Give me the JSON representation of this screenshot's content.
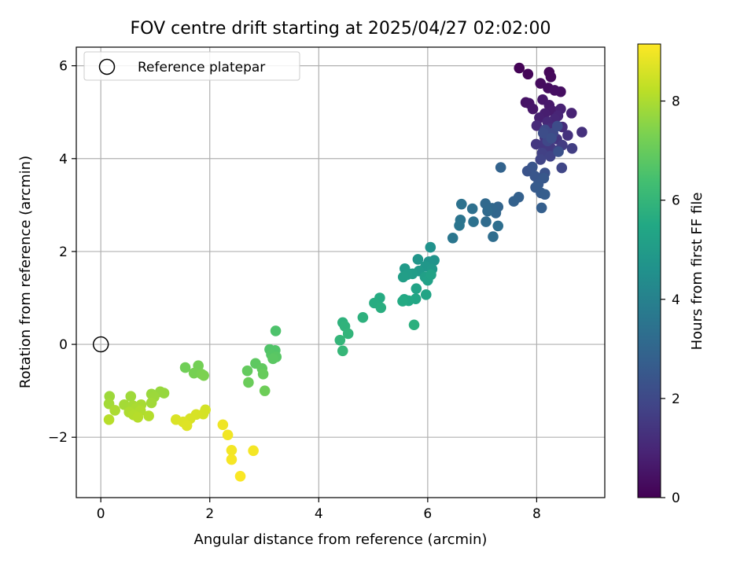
{
  "chart_data": {
    "type": "scatter",
    "title": "FOV centre drift starting at 2025/04/27 02:02:00",
    "xlabel": "Angular distance from reference (arcmin)",
    "ylabel": "Rotation from reference (arcmin)",
    "xlim": [
      -0.45,
      9.25
    ],
    "ylim": [
      -3.3,
      6.4
    ],
    "xticks": [
      0,
      2,
      4,
      6,
      8
    ],
    "xtick_labels": [
      "0",
      "2",
      "4",
      "6",
      "8"
    ],
    "yticks": [
      -2,
      0,
      2,
      4,
      6
    ],
    "ytick_labels": [
      "−2",
      "0",
      "2",
      "4",
      "6"
    ],
    "grid": true,
    "legend": {
      "placement": "top-left",
      "entries": [
        {
          "label": "Reference platepar",
          "marker": "open-circle"
        }
      ]
    },
    "reference_point": {
      "x": 0,
      "y": 0
    },
    "colorbar": {
      "label": "Hours from first FF file",
      "colormap": "viridis",
      "range": [
        0,
        9.15
      ],
      "ticks": [
        0,
        2,
        4,
        6,
        8
      ],
      "tick_labels": [
        "0",
        "2",
        "4",
        "6",
        "8"
      ]
    },
    "series": [
      {
        "points": [
          {
            "x": 7.68,
            "y": 5.95,
            "c": 0.05
          },
          {
            "x": 7.84,
            "y": 5.82,
            "c": 0.1
          },
          {
            "x": 8.23,
            "y": 5.86,
            "c": 0.15
          },
          {
            "x": 8.26,
            "y": 5.76,
            "c": 0.2
          },
          {
            "x": 8.07,
            "y": 5.62,
            "c": 0.25
          },
          {
            "x": 8.21,
            "y": 5.52,
            "c": 0.3
          },
          {
            "x": 8.44,
            "y": 5.44,
            "c": 0.35
          },
          {
            "x": 8.33,
            "y": 5.47,
            "c": 0.4
          },
          {
            "x": 7.8,
            "y": 5.21,
            "c": 0.45
          },
          {
            "x": 7.86,
            "y": 5.19,
            "c": 0.5
          },
          {
            "x": 7.93,
            "y": 5.07,
            "c": 0.55
          },
          {
            "x": 8.11,
            "y": 5.27,
            "c": 0.6
          },
          {
            "x": 8.23,
            "y": 5.15,
            "c": 0.65
          },
          {
            "x": 8.3,
            "y": 5.02,
            "c": 0.7
          },
          {
            "x": 8.15,
            "y": 4.97,
            "c": 0.75
          },
          {
            "x": 8.05,
            "y": 4.88,
            "c": 0.8
          },
          {
            "x": 8.44,
            "y": 5.07,
            "c": 0.85
          },
          {
            "x": 8.64,
            "y": 4.98,
            "c": 0.9
          },
          {
            "x": 8.39,
            "y": 4.92,
            "c": 0.95
          },
          {
            "x": 8.33,
            "y": 4.85,
            "c": 1.0
          },
          {
            "x": 8.2,
            "y": 4.79,
            "c": 1.05
          },
          {
            "x": 8.0,
            "y": 4.71,
            "c": 1.1
          },
          {
            "x": 8.47,
            "y": 4.68,
            "c": 1.15
          },
          {
            "x": 8.25,
            "y": 4.65,
            "c": 1.2
          },
          {
            "x": 8.83,
            "y": 4.57,
            "c": 1.25
          },
          {
            "x": 8.57,
            "y": 4.5,
            "c": 1.3
          },
          {
            "x": 8.15,
            "y": 4.45,
            "c": 1.35
          },
          {
            "x": 8.37,
            "y": 4.42,
            "c": 1.4
          },
          {
            "x": 7.99,
            "y": 4.31,
            "c": 1.45
          },
          {
            "x": 8.12,
            "y": 4.3,
            "c": 1.5
          },
          {
            "x": 8.25,
            "y": 4.24,
            "c": 1.55
          },
          {
            "x": 8.47,
            "y": 4.29,
            "c": 1.6
          },
          {
            "x": 8.65,
            "y": 4.22,
            "c": 1.65
          },
          {
            "x": 8.39,
            "y": 4.18,
            "c": 1.7
          },
          {
            "x": 8.1,
            "y": 4.12,
            "c": 1.75
          },
          {
            "x": 8.25,
            "y": 4.05,
            "c": 1.8
          },
          {
            "x": 8.07,
            "y": 3.98,
            "c": 1.85
          },
          {
            "x": 8.46,
            "y": 3.8,
            "c": 1.9
          },
          {
            "x": 8.2,
            "y": 4.38,
            "c": 1.95
          },
          {
            "x": 8.3,
            "y": 4.55,
            "c": 2.0
          },
          {
            "x": 8.15,
            "y": 4.62,
            "c": 2.05
          },
          {
            "x": 8.38,
            "y": 4.7,
            "c": 2.1
          },
          {
            "x": 8.12,
            "y": 4.55,
            "c": 2.15
          },
          {
            "x": 8.27,
            "y": 4.44,
            "c": 2.2
          },
          {
            "x": 8.4,
            "y": 4.15,
            "c": 2.25
          },
          {
            "x": 8.15,
            "y": 3.69,
            "c": 2.3
          },
          {
            "x": 7.83,
            "y": 3.73,
            "c": 2.35
          },
          {
            "x": 7.92,
            "y": 3.82,
            "c": 2.4
          },
          {
            "x": 7.97,
            "y": 3.62,
            "c": 2.45
          },
          {
            "x": 8.13,
            "y": 3.58,
            "c": 2.5
          },
          {
            "x": 8.03,
            "y": 3.45,
            "c": 2.55
          },
          {
            "x": 7.98,
            "y": 3.38,
            "c": 2.6
          },
          {
            "x": 8.08,
            "y": 3.26,
            "c": 2.65
          },
          {
            "x": 8.15,
            "y": 3.23,
            "c": 2.7
          },
          {
            "x": 8.09,
            "y": 2.94,
            "c": 2.75
          },
          {
            "x": 7.67,
            "y": 3.17,
            "c": 2.8
          },
          {
            "x": 7.58,
            "y": 3.08,
            "c": 2.85
          },
          {
            "x": 7.34,
            "y": 3.81,
            "c": 2.9
          },
          {
            "x": 7.29,
            "y": 2.96,
            "c": 2.95
          },
          {
            "x": 7.25,
            "y": 2.83,
            "c": 3.0
          },
          {
            "x": 7.18,
            "y": 2.93,
            "c": 3.05
          },
          {
            "x": 7.06,
            "y": 3.03,
            "c": 3.1
          },
          {
            "x": 7.1,
            "y": 2.87,
            "c": 3.15
          },
          {
            "x": 7.07,
            "y": 2.64,
            "c": 3.2
          },
          {
            "x": 7.2,
            "y": 2.32,
            "c": 3.25
          },
          {
            "x": 7.29,
            "y": 2.55,
            "c": 3.3
          },
          {
            "x": 6.82,
            "y": 2.92,
            "c": 3.35
          },
          {
            "x": 6.84,
            "y": 2.64,
            "c": 3.4
          },
          {
            "x": 6.62,
            "y": 3.02,
            "c": 3.45
          },
          {
            "x": 6.6,
            "y": 2.68,
            "c": 3.5
          },
          {
            "x": 6.58,
            "y": 2.56,
            "c": 3.55
          },
          {
            "x": 6.46,
            "y": 2.29,
            "c": 3.6
          },
          {
            "x": 6.05,
            "y": 2.09,
            "c": 4.6
          },
          {
            "x": 6.12,
            "y": 1.81,
            "c": 4.65
          },
          {
            "x": 6.02,
            "y": 1.78,
            "c": 4.7
          },
          {
            "x": 5.82,
            "y": 1.83,
            "c": 4.75
          },
          {
            "x": 5.96,
            "y": 1.68,
            "c": 4.8
          },
          {
            "x": 6.08,
            "y": 1.62,
            "c": 4.85
          },
          {
            "x": 5.84,
            "y": 1.58,
            "c": 4.9
          },
          {
            "x": 5.58,
            "y": 1.63,
            "c": 4.95
          },
          {
            "x": 5.72,
            "y": 1.52,
            "c": 5.0
          },
          {
            "x": 5.62,
            "y": 1.5,
            "c": 5.05
          },
          {
            "x": 5.55,
            "y": 1.45,
            "c": 5.1
          },
          {
            "x": 5.95,
            "y": 1.45,
            "c": 5.15
          },
          {
            "x": 6.0,
            "y": 1.38,
            "c": 5.2
          },
          {
            "x": 6.06,
            "y": 1.5,
            "c": 5.25
          },
          {
            "x": 5.79,
            "y": 1.2,
            "c": 5.3
          },
          {
            "x": 5.97,
            "y": 1.07,
            "c": 5.35
          },
          {
            "x": 5.78,
            "y": 0.98,
            "c": 5.4
          },
          {
            "x": 5.57,
            "y": 0.97,
            "c": 5.45
          },
          {
            "x": 5.65,
            "y": 0.94,
            "c": 5.5
          },
          {
            "x": 5.54,
            "y": 0.93,
            "c": 5.55
          },
          {
            "x": 5.12,
            "y": 1.0,
            "c": 5.6
          },
          {
            "x": 5.02,
            "y": 0.89,
            "c": 5.65
          },
          {
            "x": 5.14,
            "y": 0.79,
            "c": 5.7
          },
          {
            "x": 5.75,
            "y": 0.42,
            "c": 5.75
          },
          {
            "x": 4.81,
            "y": 0.58,
            "c": 5.8
          },
          {
            "x": 4.44,
            "y": 0.47,
            "c": 5.85
          },
          {
            "x": 4.48,
            "y": 0.39,
            "c": 5.9
          },
          {
            "x": 4.54,
            "y": 0.23,
            "c": 5.95
          },
          {
            "x": 4.39,
            "y": 0.09,
            "c": 6.0
          },
          {
            "x": 4.44,
            "y": -0.14,
            "c": 6.05
          },
          {
            "x": 3.21,
            "y": 0.29,
            "c": 6.55
          },
          {
            "x": 3.1,
            "y": -0.11,
            "c": 6.6
          },
          {
            "x": 3.2,
            "y": -0.13,
            "c": 6.65
          },
          {
            "x": 3.13,
            "y": -0.22,
            "c": 6.7
          },
          {
            "x": 3.22,
            "y": -0.27,
            "c": 6.75
          },
          {
            "x": 3.16,
            "y": -0.31,
            "c": 6.8
          },
          {
            "x": 2.84,
            "y": -0.41,
            "c": 6.85
          },
          {
            "x": 2.96,
            "y": -0.52,
            "c": 6.9
          },
          {
            "x": 2.69,
            "y": -0.57,
            "c": 6.95
          },
          {
            "x": 2.98,
            "y": -0.64,
            "c": 7.0
          },
          {
            "x": 2.71,
            "y": -0.82,
            "c": 7.05
          },
          {
            "x": 3.01,
            "y": -1.0,
            "c": 7.1
          },
          {
            "x": 1.55,
            "y": -0.5,
            "c": 7.15
          },
          {
            "x": 1.79,
            "y": -0.46,
            "c": 7.2
          },
          {
            "x": 1.71,
            "y": -0.62,
            "c": 7.25
          },
          {
            "x": 1.85,
            "y": -0.64,
            "c": 7.3
          },
          {
            "x": 1.89,
            "y": -0.67,
            "c": 7.35
          },
          {
            "x": 1.16,
            "y": -1.05,
            "c": 7.7
          },
          {
            "x": 1.09,
            "y": -1.02,
            "c": 7.72
          },
          {
            "x": 0.93,
            "y": -1.07,
            "c": 7.75
          },
          {
            "x": 0.98,
            "y": -1.13,
            "c": 7.78
          },
          {
            "x": 0.16,
            "y": -1.12,
            "c": 7.8
          },
          {
            "x": 0.55,
            "y": -1.12,
            "c": 7.82
          },
          {
            "x": 0.93,
            "y": -1.26,
            "c": 7.85
          },
          {
            "x": 0.15,
            "y": -1.28,
            "c": 7.88
          },
          {
            "x": 0.43,
            "y": -1.3,
            "c": 7.9
          },
          {
            "x": 0.59,
            "y": -1.32,
            "c": 7.92
          },
          {
            "x": 0.74,
            "y": -1.3,
            "c": 7.95
          },
          {
            "x": 0.65,
            "y": -1.37,
            "c": 7.98
          },
          {
            "x": 0.26,
            "y": -1.42,
            "c": 8.0
          },
          {
            "x": 0.52,
            "y": -1.46,
            "c": 8.02
          },
          {
            "x": 0.73,
            "y": -1.43,
            "c": 8.05
          },
          {
            "x": 0.6,
            "y": -1.52,
            "c": 8.08
          },
          {
            "x": 0.88,
            "y": -1.54,
            "c": 8.1
          },
          {
            "x": 0.68,
            "y": -1.57,
            "c": 8.12
          },
          {
            "x": 0.15,
            "y": -1.62,
            "c": 8.15
          },
          {
            "x": 1.92,
            "y": -1.41,
            "c": 8.55
          },
          {
            "x": 1.88,
            "y": -1.5,
            "c": 8.58
          },
          {
            "x": 1.75,
            "y": -1.51,
            "c": 8.6
          },
          {
            "x": 1.64,
            "y": -1.6,
            "c": 8.62
          },
          {
            "x": 1.38,
            "y": -1.62,
            "c": 8.65
          },
          {
            "x": 1.51,
            "y": -1.67,
            "c": 8.68
          },
          {
            "x": 1.58,
            "y": -1.75,
            "c": 8.7
          },
          {
            "x": 2.24,
            "y": -1.73,
            "c": 8.95
          },
          {
            "x": 2.33,
            "y": -1.95,
            "c": 8.98
          },
          {
            "x": 2.4,
            "y": -2.28,
            "c": 9.0
          },
          {
            "x": 2.8,
            "y": -2.29,
            "c": 9.02
          },
          {
            "x": 2.4,
            "y": -2.48,
            "c": 9.05
          },
          {
            "x": 2.56,
            "y": -2.84,
            "c": 9.1
          }
        ]
      }
    ]
  }
}
